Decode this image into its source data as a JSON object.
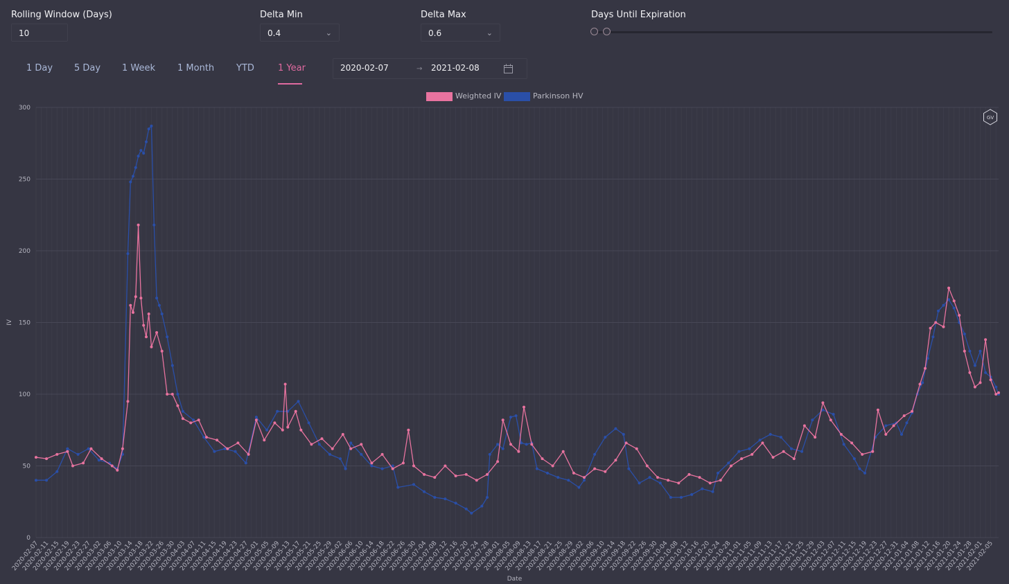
{
  "controls": {
    "rolling_window": {
      "label": "Rolling Window (Days)",
      "value": "10"
    },
    "delta_min": {
      "label": "Delta Min",
      "value": "0.4"
    },
    "delta_max": {
      "label": "Delta Max",
      "value": "0.6"
    },
    "days_until_expiration": {
      "label": "Days Until Expiration"
    }
  },
  "icons": {
    "chevron": "chevron-down-icon",
    "calendar": "calendar-icon",
    "logo": "gv-logo-icon"
  },
  "tabs": [
    {
      "label": "1 Day",
      "active": false
    },
    {
      "label": "5 Day",
      "active": false
    },
    {
      "label": "1 Week",
      "active": false
    },
    {
      "label": "1 Month",
      "active": false
    },
    {
      "label": "YTD",
      "active": false
    },
    {
      "label": "1 Year",
      "active": true
    }
  ],
  "date_range": {
    "start": "2020-02-07",
    "separator": "→",
    "end": "2021-02-08"
  },
  "logo_text": "GV",
  "colors": {
    "background": "#363643",
    "weighted_iv": "#e8739f",
    "parkinson_hv": "#2a4fa8",
    "accent": "#e06aa0"
  },
  "chart_data": {
    "type": "line",
    "xlabel": "Date",
    "ylabel": "IV",
    "ylim": [
      0,
      300
    ],
    "yticks": [
      0,
      50,
      100,
      150,
      200,
      250,
      300
    ],
    "grid": true,
    "legend_placement": "top-center",
    "x_tick_labels": [
      "2020-02-07",
      "2020-02-11",
      "2020-02-15",
      "2020-02-19",
      "2020-02-23",
      "2020-02-27",
      "2020-03-02",
      "2020-03-06",
      "2020-03-10",
      "2020-03-14",
      "2020-03-18",
      "2020-03-22",
      "2020-03-26",
      "2020-03-30",
      "2020-04-03",
      "2020-04-07",
      "2020-04-11",
      "2020-04-15",
      "2020-04-19",
      "2020-04-23",
      "2020-04-27",
      "2020-05-01",
      "2020-05-05",
      "2020-05-09",
      "2020-05-13",
      "2020-05-17",
      "2020-05-21",
      "2020-05-25",
      "2020-05-29",
      "2020-06-02",
      "2020-06-06",
      "2020-06-10",
      "2020-06-14",
      "2020-06-18",
      "2020-06-22",
      "2020-06-26",
      "2020-06-30",
      "2020-07-04",
      "2020-07-08",
      "2020-07-12",
      "2020-07-16",
      "2020-07-20",
      "2020-07-24",
      "2020-07-28",
      "2020-08-01",
      "2020-08-05",
      "2020-08-09",
      "2020-08-13",
      "2020-08-17",
      "2020-08-21",
      "2020-08-25",
      "2020-08-29",
      "2020-09-02",
      "2020-09-06",
      "2020-09-10",
      "2020-09-14",
      "2020-09-18",
      "2020-09-22",
      "2020-09-26",
      "2020-09-30",
      "2020-10-04",
      "2020-10-08",
      "2020-10-12",
      "2020-10-16",
      "2020-10-20",
      "2020-10-24",
      "2020-10-28",
      "2020-11-01",
      "2020-11-05",
      "2020-11-09",
      "2020-11-13",
      "2020-11-17",
      "2020-11-21",
      "2020-11-25",
      "2020-11-29",
      "2020-12-03",
      "2020-12-07",
      "2020-12-11",
      "2020-12-15",
      "2020-12-19",
      "2020-12-23",
      "2020-12-27",
      "2020-12-31",
      "2021-01-04",
      "2021-01-08",
      "2021-01-12",
      "2021-01-16",
      "2021-01-20",
      "2021-01-24",
      "2021-01-28",
      "2021-02-01",
      "2021-02-05"
    ],
    "x_range": [
      "2020-02-07",
      "2021-02-08"
    ],
    "series": [
      {
        "name": "Weighted IV",
        "color": "#e8739f",
        "points": [
          [
            "2020-02-07",
            56
          ],
          [
            "2020-02-11",
            55
          ],
          [
            "2020-02-15",
            58
          ],
          [
            "2020-02-19",
            60
          ],
          [
            "2020-02-21",
            50
          ],
          [
            "2020-02-25",
            52
          ],
          [
            "2020-02-28",
            62
          ],
          [
            "2020-03-03",
            55
          ],
          [
            "2020-03-07",
            50
          ],
          [
            "2020-03-09",
            47
          ],
          [
            "2020-03-11",
            62
          ],
          [
            "2020-03-13",
            95
          ],
          [
            "2020-03-14",
            162
          ],
          [
            "2020-03-15",
            157
          ],
          [
            "2020-03-16",
            168
          ],
          [
            "2020-03-17",
            218
          ],
          [
            "2020-03-18",
            167
          ],
          [
            "2020-03-19",
            148
          ],
          [
            "2020-03-20",
            140
          ],
          [
            "2020-03-21",
            156
          ],
          [
            "2020-03-22",
            133
          ],
          [
            "2020-03-24",
            143
          ],
          [
            "2020-03-26",
            130
          ],
          [
            "2020-03-28",
            100
          ],
          [
            "2020-03-30",
            100
          ],
          [
            "2020-04-01",
            92
          ],
          [
            "2020-04-03",
            83
          ],
          [
            "2020-04-06",
            80
          ],
          [
            "2020-04-09",
            82
          ],
          [
            "2020-04-12",
            70
          ],
          [
            "2020-04-16",
            68
          ],
          [
            "2020-04-20",
            62
          ],
          [
            "2020-04-24",
            66
          ],
          [
            "2020-04-28",
            58
          ],
          [
            "2020-05-01",
            82
          ],
          [
            "2020-05-04",
            68
          ],
          [
            "2020-05-08",
            80
          ],
          [
            "2020-05-11",
            75
          ],
          [
            "2020-05-12",
            107
          ],
          [
            "2020-05-13",
            77
          ],
          [
            "2020-05-16",
            88
          ],
          [
            "2020-05-18",
            75
          ],
          [
            "2020-05-22",
            65
          ],
          [
            "2020-05-26",
            69
          ],
          [
            "2020-05-30",
            62
          ],
          [
            "2020-06-03",
            72
          ],
          [
            "2020-06-06",
            62
          ],
          [
            "2020-06-10",
            65
          ],
          [
            "2020-06-14",
            52
          ],
          [
            "2020-06-18",
            58
          ],
          [
            "2020-06-22",
            48
          ],
          [
            "2020-06-26",
            52
          ],
          [
            "2020-06-28",
            75
          ],
          [
            "2020-06-30",
            50
          ],
          [
            "2020-07-04",
            44
          ],
          [
            "2020-07-08",
            42
          ],
          [
            "2020-07-12",
            50
          ],
          [
            "2020-07-16",
            43
          ],
          [
            "2020-07-20",
            44
          ],
          [
            "2020-07-24",
            40
          ],
          [
            "2020-07-28",
            44
          ],
          [
            "2020-08-01",
            53
          ],
          [
            "2020-08-03",
            82
          ],
          [
            "2020-08-06",
            65
          ],
          [
            "2020-08-09",
            60
          ],
          [
            "2020-08-11",
            91
          ],
          [
            "2020-08-14",
            65
          ],
          [
            "2020-08-18",
            55
          ],
          [
            "2020-08-22",
            50
          ],
          [
            "2020-08-26",
            60
          ],
          [
            "2020-08-30",
            45
          ],
          [
            "2020-09-03",
            42
          ],
          [
            "2020-09-07",
            48
          ],
          [
            "2020-09-11",
            46
          ],
          [
            "2020-09-15",
            54
          ],
          [
            "2020-09-19",
            66
          ],
          [
            "2020-09-23",
            62
          ],
          [
            "2020-09-27",
            50
          ],
          [
            "2020-10-01",
            42
          ],
          [
            "2020-10-05",
            40
          ],
          [
            "2020-10-09",
            38
          ],
          [
            "2020-10-13",
            44
          ],
          [
            "2020-10-17",
            42
          ],
          [
            "2020-10-21",
            38
          ],
          [
            "2020-10-25",
            40
          ],
          [
            "2020-10-29",
            50
          ],
          [
            "2020-11-02",
            55
          ],
          [
            "2020-11-06",
            58
          ],
          [
            "2020-11-10",
            66
          ],
          [
            "2020-11-14",
            56
          ],
          [
            "2020-11-18",
            60
          ],
          [
            "2020-11-22",
            55
          ],
          [
            "2020-11-26",
            78
          ],
          [
            "2020-11-30",
            70
          ],
          [
            "2020-12-03",
            94
          ],
          [
            "2020-12-06",
            82
          ],
          [
            "2020-12-10",
            72
          ],
          [
            "2020-12-14",
            66
          ],
          [
            "2020-12-18",
            58
          ],
          [
            "2020-12-22",
            60
          ],
          [
            "2020-12-24",
            89
          ],
          [
            "2020-12-27",
            72
          ],
          [
            "2020-12-30",
            78
          ],
          [
            "2021-01-03",
            85
          ],
          [
            "2021-01-06",
            88
          ],
          [
            "2021-01-09",
            107
          ],
          [
            "2021-01-11",
            118
          ],
          [
            "2021-01-13",
            146
          ],
          [
            "2021-01-15",
            150
          ],
          [
            "2021-01-18",
            147
          ],
          [
            "2021-01-20",
            174
          ],
          [
            "2021-01-22",
            165
          ],
          [
            "2021-01-24",
            155
          ],
          [
            "2021-01-26",
            130
          ],
          [
            "2021-01-28",
            115
          ],
          [
            "2021-01-30",
            105
          ],
          [
            "2021-02-01",
            108
          ],
          [
            "2021-02-03",
            138
          ],
          [
            "2021-02-05",
            110
          ],
          [
            "2021-02-07",
            100
          ],
          [
            "2021-02-08",
            101
          ]
        ]
      },
      {
        "name": "Parkinson HV",
        "color": "#2a4fa8",
        "points": [
          [
            "2020-02-07",
            40
          ],
          [
            "2020-02-11",
            40
          ],
          [
            "2020-02-15",
            46
          ],
          [
            "2020-02-19",
            62
          ],
          [
            "2020-02-23",
            58
          ],
          [
            "2020-02-27",
            62
          ],
          [
            "2020-03-02",
            54
          ],
          [
            "2020-03-06",
            52
          ],
          [
            "2020-03-09",
            48
          ],
          [
            "2020-03-11",
            58
          ],
          [
            "2020-03-13",
            198
          ],
          [
            "2020-03-14",
            248
          ],
          [
            "2020-03-15",
            252
          ],
          [
            "2020-03-16",
            258
          ],
          [
            "2020-03-17",
            266
          ],
          [
            "2020-03-18",
            270
          ],
          [
            "2020-03-19",
            268
          ],
          [
            "2020-03-20",
            276
          ],
          [
            "2020-03-21",
            285
          ],
          [
            "2020-03-22",
            287
          ],
          [
            "2020-03-23",
            218
          ],
          [
            "2020-03-24",
            167
          ],
          [
            "2020-03-25",
            162
          ],
          [
            "2020-03-26",
            156
          ],
          [
            "2020-03-28",
            140
          ],
          [
            "2020-03-30",
            120
          ],
          [
            "2020-04-01",
            100
          ],
          [
            "2020-04-03",
            88
          ],
          [
            "2020-04-07",
            82
          ],
          [
            "2020-04-11",
            70
          ],
          [
            "2020-04-15",
            60
          ],
          [
            "2020-04-19",
            62
          ],
          [
            "2020-04-23",
            60
          ],
          [
            "2020-04-27",
            52
          ],
          [
            "2020-05-01",
            84
          ],
          [
            "2020-05-05",
            75
          ],
          [
            "2020-05-09",
            88
          ],
          [
            "2020-05-13",
            88
          ],
          [
            "2020-05-17",
            95
          ],
          [
            "2020-05-21",
            80
          ],
          [
            "2020-05-25",
            65
          ],
          [
            "2020-05-29",
            58
          ],
          [
            "2020-06-02",
            55
          ],
          [
            "2020-06-04",
            48
          ],
          [
            "2020-06-06",
            66
          ],
          [
            "2020-06-10",
            58
          ],
          [
            "2020-06-14",
            50
          ],
          [
            "2020-06-18",
            48
          ],
          [
            "2020-06-22",
            50
          ],
          [
            "2020-06-24",
            35
          ],
          [
            "2020-06-30",
            37
          ],
          [
            "2020-07-04",
            32
          ],
          [
            "2020-07-08",
            28
          ],
          [
            "2020-07-12",
            27
          ],
          [
            "2020-07-16",
            24
          ],
          [
            "2020-07-20",
            20
          ],
          [
            "2020-07-22",
            17
          ],
          [
            "2020-07-26",
            22
          ],
          [
            "2020-07-28",
            28
          ],
          [
            "2020-07-29",
            58
          ],
          [
            "2020-08-01",
            65
          ],
          [
            "2020-08-03",
            62
          ],
          [
            "2020-08-06",
            84
          ],
          [
            "2020-08-08",
            85
          ],
          [
            "2020-08-10",
            66
          ],
          [
            "2020-08-12",
            65
          ],
          [
            "2020-08-14",
            66
          ],
          [
            "2020-08-16",
            48
          ],
          [
            "2020-08-20",
            45
          ],
          [
            "2020-08-24",
            42
          ],
          [
            "2020-08-28",
            40
          ],
          [
            "2020-09-01",
            35
          ],
          [
            "2020-09-03",
            40
          ],
          [
            "2020-09-07",
            58
          ],
          [
            "2020-09-11",
            70
          ],
          [
            "2020-09-15",
            76
          ],
          [
            "2020-09-18",
            72
          ],
          [
            "2020-09-20",
            48
          ],
          [
            "2020-09-24",
            38
          ],
          [
            "2020-09-28",
            42
          ],
          [
            "2020-10-02",
            38
          ],
          [
            "2020-10-06",
            28
          ],
          [
            "2020-10-10",
            28
          ],
          [
            "2020-10-14",
            30
          ],
          [
            "2020-10-18",
            34
          ],
          [
            "2020-10-22",
            32
          ],
          [
            "2020-10-24",
            45
          ],
          [
            "2020-10-28",
            52
          ],
          [
            "2020-11-01",
            60
          ],
          [
            "2020-11-05",
            62
          ],
          [
            "2020-11-09",
            68
          ],
          [
            "2020-11-13",
            72
          ],
          [
            "2020-11-17",
            70
          ],
          [
            "2020-11-21",
            62
          ],
          [
            "2020-11-25",
            60
          ],
          [
            "2020-11-29",
            82
          ],
          [
            "2020-12-03",
            89
          ],
          [
            "2020-12-07",
            86
          ],
          [
            "2020-12-11",
            65
          ],
          [
            "2020-12-15",
            55
          ],
          [
            "2020-12-17",
            48
          ],
          [
            "2020-12-19",
            45
          ],
          [
            "2020-12-23",
            70
          ],
          [
            "2020-12-27",
            78
          ],
          [
            "2020-12-31",
            80
          ],
          [
            "2021-01-02",
            72
          ],
          [
            "2021-01-04",
            80
          ],
          [
            "2021-01-06",
            87
          ],
          [
            "2021-01-08",
            100
          ],
          [
            "2021-01-10",
            108
          ],
          [
            "2021-01-12",
            125
          ],
          [
            "2021-01-14",
            140
          ],
          [
            "2021-01-16",
            158
          ],
          [
            "2021-01-18",
            162
          ],
          [
            "2021-01-20",
            166
          ],
          [
            "2021-01-22",
            160
          ],
          [
            "2021-01-24",
            150
          ],
          [
            "2021-01-26",
            142
          ],
          [
            "2021-01-28",
            130
          ],
          [
            "2021-01-30",
            120
          ],
          [
            "2021-02-01",
            130
          ],
          [
            "2021-02-03",
            115
          ],
          [
            "2021-02-05",
            112
          ],
          [
            "2021-02-07",
            105
          ],
          [
            "2021-02-08",
            100
          ]
        ]
      }
    ]
  }
}
